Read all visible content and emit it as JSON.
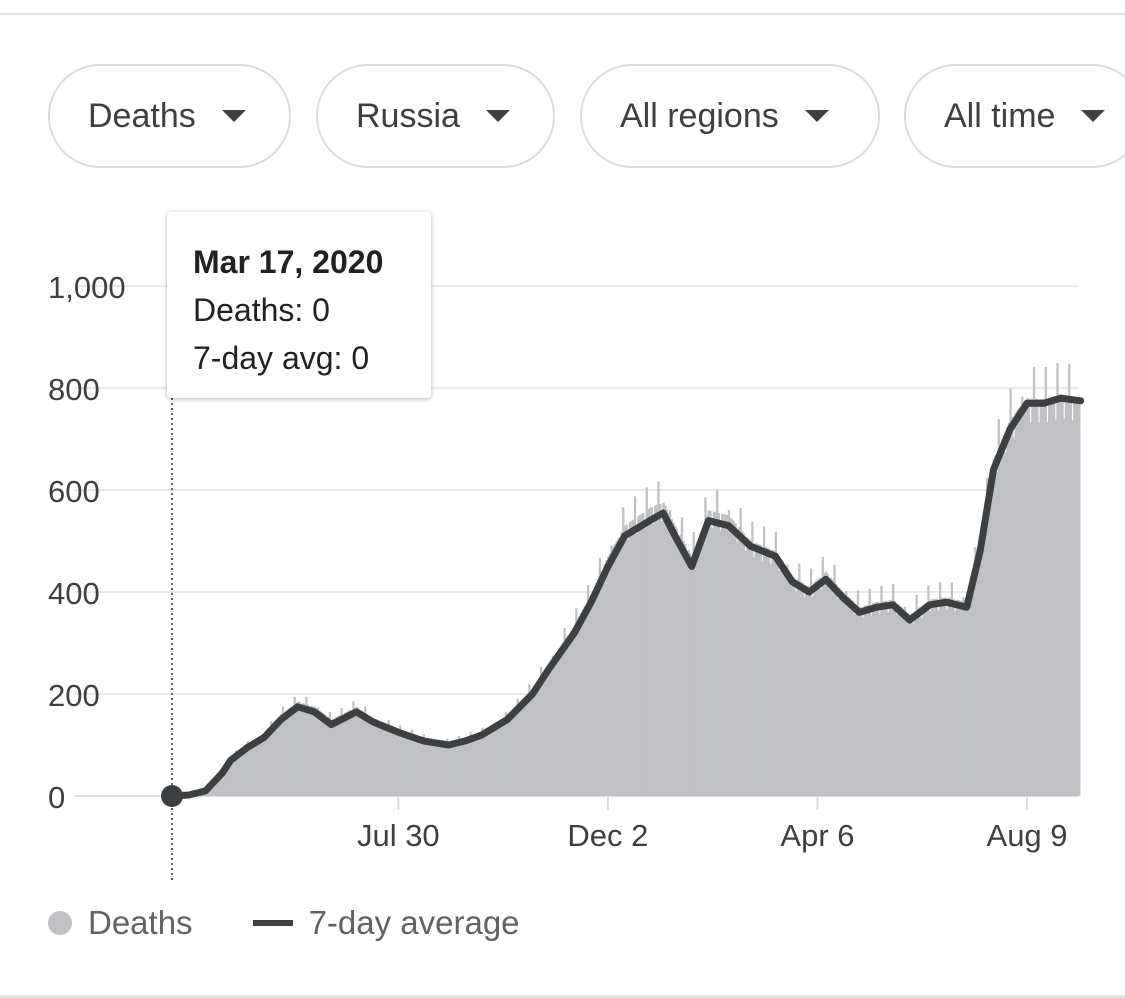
{
  "filters": {
    "metric": "Deaths",
    "country": "Russia",
    "region": "All regions",
    "timeframe": "All time"
  },
  "tooltip": {
    "date": "Mar 17, 2020",
    "deaths_label": "Deaths: 0",
    "avg_label": "7-day avg: 0"
  },
  "legend": {
    "deaths": "Deaths",
    "average": "7-day average"
  },
  "colors": {
    "bars": "#c0c1c4",
    "average_line": "#3c4043",
    "grid": "#e8eaed"
  },
  "chart_data": {
    "type": "area",
    "title": "",
    "xlabel": "",
    "ylabel": "",
    "ylim": [
      0,
      1000
    ],
    "x_range_days": [
      0,
      541
    ],
    "yticks": [
      "0",
      "200",
      "400",
      "600",
      "800",
      "1,000"
    ],
    "ytick_values": [
      0,
      200,
      400,
      600,
      800,
      1000
    ],
    "xticks": [
      {
        "label": "Jul 30",
        "day": 135
      },
      {
        "label": "Dec 2",
        "day": 260
      },
      {
        "label": "Apr 6",
        "day": 385
      },
      {
        "label": "Aug 9",
        "day": 510
      }
    ],
    "series": [
      {
        "name": "7-day average",
        "points": [
          [
            0,
            0
          ],
          [
            10,
            2
          ],
          [
            20,
            10
          ],
          [
            30,
            45
          ],
          [
            35,
            70
          ],
          [
            45,
            95
          ],
          [
            55,
            115
          ],
          [
            65,
            150
          ],
          [
            75,
            175
          ],
          [
            85,
            165
          ],
          [
            95,
            140
          ],
          [
            110,
            165
          ],
          [
            120,
            145
          ],
          [
            135,
            125
          ],
          [
            150,
            108
          ],
          [
            165,
            100
          ],
          [
            175,
            108
          ],
          [
            185,
            120
          ],
          [
            200,
            150
          ],
          [
            215,
            200
          ],
          [
            225,
            250
          ],
          [
            240,
            320
          ],
          [
            250,
            380
          ],
          [
            260,
            450
          ],
          [
            270,
            510
          ],
          [
            285,
            540
          ],
          [
            293,
            555
          ],
          [
            300,
            510
          ],
          [
            310,
            450
          ],
          [
            320,
            540
          ],
          [
            332,
            530
          ],
          [
            345,
            490
          ],
          [
            360,
            470
          ],
          [
            370,
            420
          ],
          [
            380,
            400
          ],
          [
            390,
            425
          ],
          [
            400,
            390
          ],
          [
            410,
            360
          ],
          [
            420,
            370
          ],
          [
            430,
            375
          ],
          [
            440,
            345
          ],
          [
            452,
            375
          ],
          [
            462,
            380
          ],
          [
            474,
            370
          ],
          [
            482,
            480
          ],
          [
            490,
            640
          ],
          [
            500,
            720
          ],
          [
            510,
            770
          ],
          [
            520,
            770
          ],
          [
            530,
            780
          ],
          [
            542,
            775
          ]
        ]
      },
      {
        "name": "Deaths",
        "points": [
          [
            0,
            0
          ],
          [
            10,
            3
          ],
          [
            20,
            12
          ],
          [
            30,
            50
          ],
          [
            35,
            75
          ],
          [
            45,
            100
          ],
          [
            55,
            120
          ],
          [
            65,
            160
          ],
          [
            75,
            185
          ],
          [
            85,
            175
          ],
          [
            95,
            150
          ],
          [
            110,
            175
          ],
          [
            120,
            150
          ],
          [
            135,
            130
          ],
          [
            150,
            112
          ],
          [
            165,
            104
          ],
          [
            175,
            112
          ],
          [
            185,
            124
          ],
          [
            200,
            155
          ],
          [
            215,
            210
          ],
          [
            225,
            260
          ],
          [
            240,
            335
          ],
          [
            250,
            395
          ],
          [
            260,
            470
          ],
          [
            270,
            530
          ],
          [
            285,
            565
          ],
          [
            293,
            575
          ],
          [
            300,
            530
          ],
          [
            310,
            470
          ],
          [
            320,
            560
          ],
          [
            332,
            550
          ],
          [
            345,
            500
          ],
          [
            360,
            480
          ],
          [
            370,
            430
          ],
          [
            380,
            410
          ],
          [
            390,
            440
          ],
          [
            400,
            400
          ],
          [
            410,
            370
          ],
          [
            420,
            380
          ],
          [
            430,
            385
          ],
          [
            440,
            355
          ],
          [
            452,
            385
          ],
          [
            462,
            390
          ],
          [
            474,
            380
          ],
          [
            482,
            495
          ],
          [
            490,
            660
          ],
          [
            500,
            740
          ],
          [
            510,
            780
          ],
          [
            520,
            778
          ],
          [
            530,
            788
          ],
          [
            542,
            780
          ]
        ]
      }
    ],
    "highlight_day": 0
  }
}
